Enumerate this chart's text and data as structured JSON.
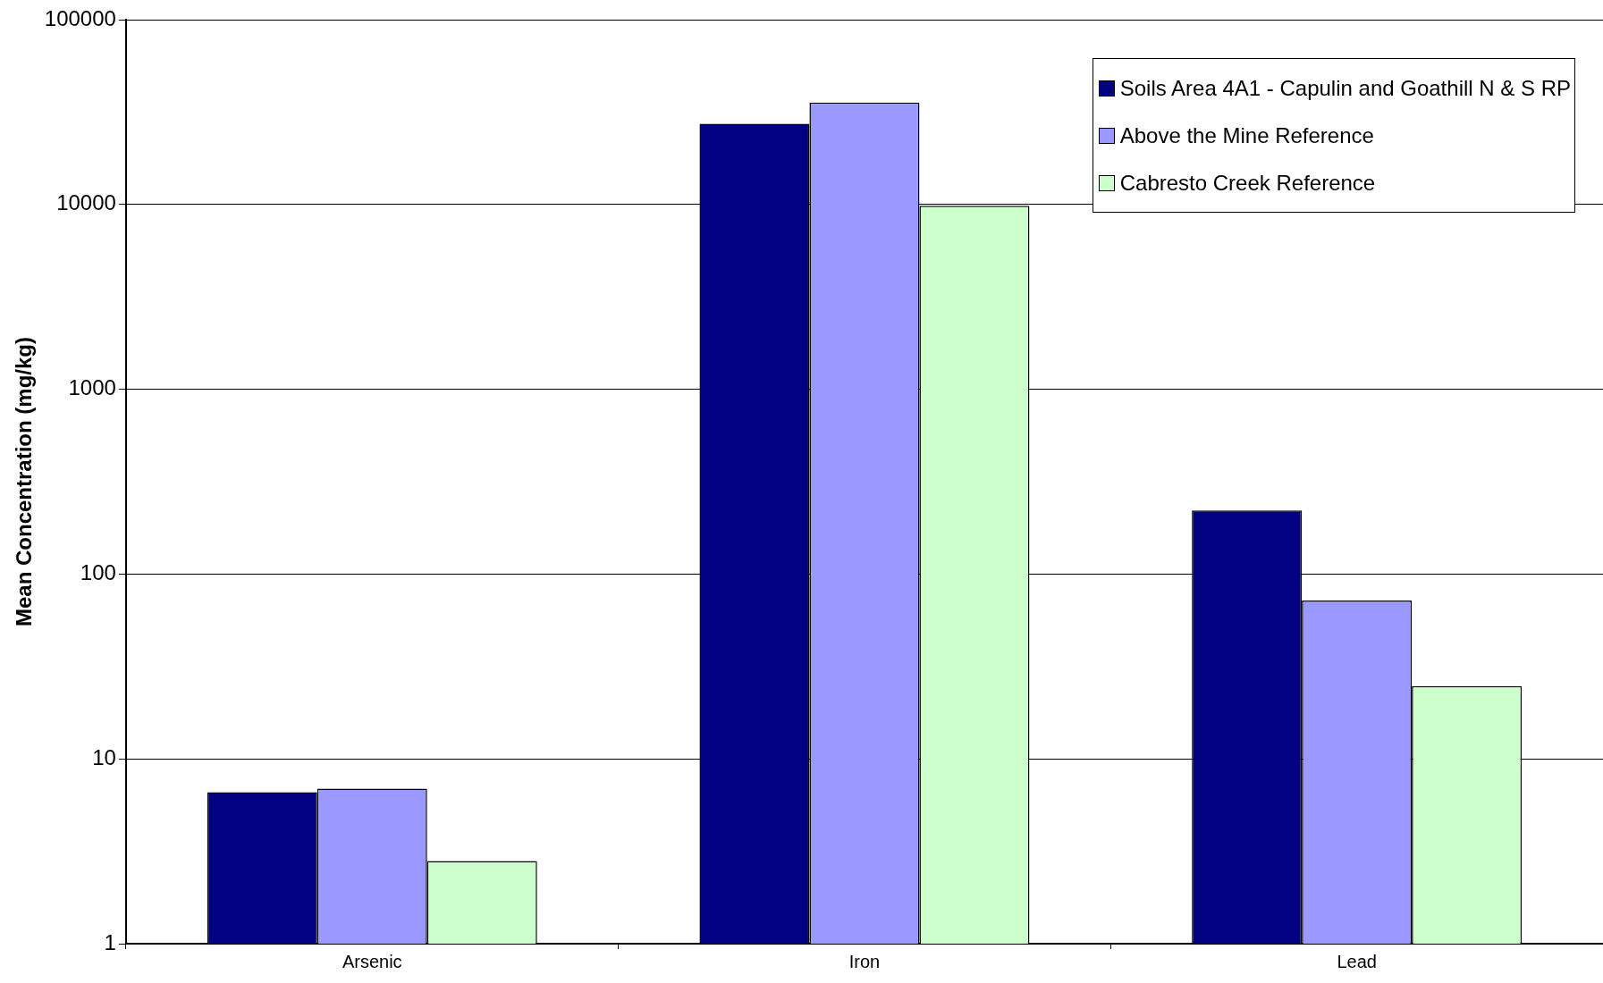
{
  "chart_data": {
    "type": "bar",
    "ylabel": "Mean Concentration (mg/kg)",
    "categories": [
      "Arsenic",
      "Iron",
      "Lead"
    ],
    "series": [
      {
        "name": "Soils Area 4A1 - Capulin and Goathill N & S RP",
        "color": "#000080",
        "values": [
          6.6,
          27300,
          221
        ]
      },
      {
        "name": "Above the Mine Reference",
        "color": "#9999ff",
        "values": [
          6.9,
          35600,
          72
        ]
      },
      {
        "name": "Cabresto Creek Reference",
        "color": "#ccffcc",
        "values": [
          2.8,
          9850,
          24.8
        ]
      }
    ],
    "log": "y",
    "ylim": [
      1,
      100000
    ],
    "yticks": [
      1,
      10,
      100,
      1000,
      10000,
      100000
    ],
    "grid": "y",
    "legend": "top right"
  }
}
